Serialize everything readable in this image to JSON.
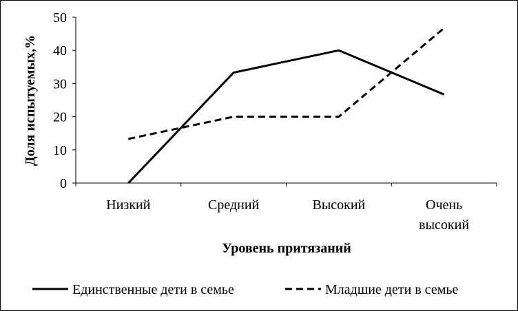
{
  "chart_data": {
    "type": "line",
    "title": "",
    "xlabel": "Уровень притязаний",
    "ylabel": "Доля испытуемых,%",
    "categories": [
      [
        "Низкий"
      ],
      [
        "Средний"
      ],
      [
        "Высокий"
      ],
      [
        "Очень",
        "высокий"
      ]
    ],
    "ylim": [
      0,
      50
    ],
    "yticks": [
      0,
      10,
      20,
      30,
      40,
      50
    ],
    "grid": false,
    "legend_position": "bottom",
    "series": [
      {
        "name": "Единственные дети в семье",
        "values": [
          0,
          33.3,
          40,
          26.7
        ],
        "style": "solid",
        "color": "#000000"
      },
      {
        "name": "Младшие дети в семье",
        "values": [
          13.3,
          20,
          20,
          46.7
        ],
        "style": "dashed",
        "color": "#000000"
      }
    ]
  }
}
